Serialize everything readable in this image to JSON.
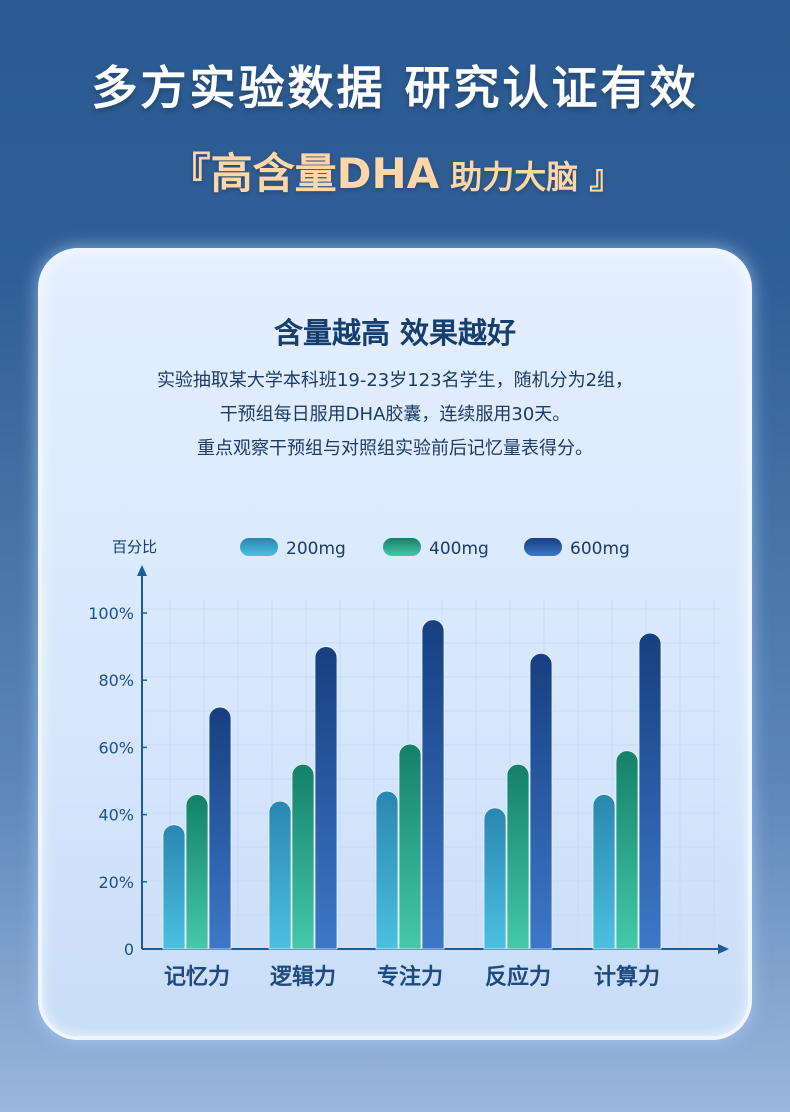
{
  "header": {
    "title": "多方实验数据 研究认证有效",
    "subtitle_open": "『",
    "subtitle_main": "高含量DHA",
    "subtitle_small": " 助力大脑",
    "subtitle_close": " 』"
  },
  "card": {
    "heading": "含量越高 效果越好",
    "lines": [
      "实验抽取某大学本科班19-23岁123名学生，随机分为2组，",
      "干预组每日服用DHA胶囊，连续服用30天。",
      "重点观察干预组与对照组实验前后记忆量表得分。"
    ]
  },
  "chart_data": {
    "type": "bar",
    "ylabel": "百分比",
    "categories": [
      "记忆力",
      "逻辑力",
      "专注力",
      "反应力",
      "计算力"
    ],
    "series": [
      {
        "name": "200mg",
        "color": "#2f9cc4",
        "values": [
          37,
          44,
          47,
          42,
          46
        ]
      },
      {
        "name": "400mg",
        "color": "#22a58a",
        "values": [
          46,
          55,
          61,
          55,
          59
        ]
      },
      {
        "name": "600mg",
        "color": "#1d4f9c",
        "values": [
          72,
          90,
          98,
          88,
          94
        ]
      }
    ],
    "yticks": [
      "0",
      "20%",
      "40%",
      "60%",
      "80%",
      "100%"
    ],
    "ylim": [
      0,
      100
    ],
    "legend": "top"
  }
}
